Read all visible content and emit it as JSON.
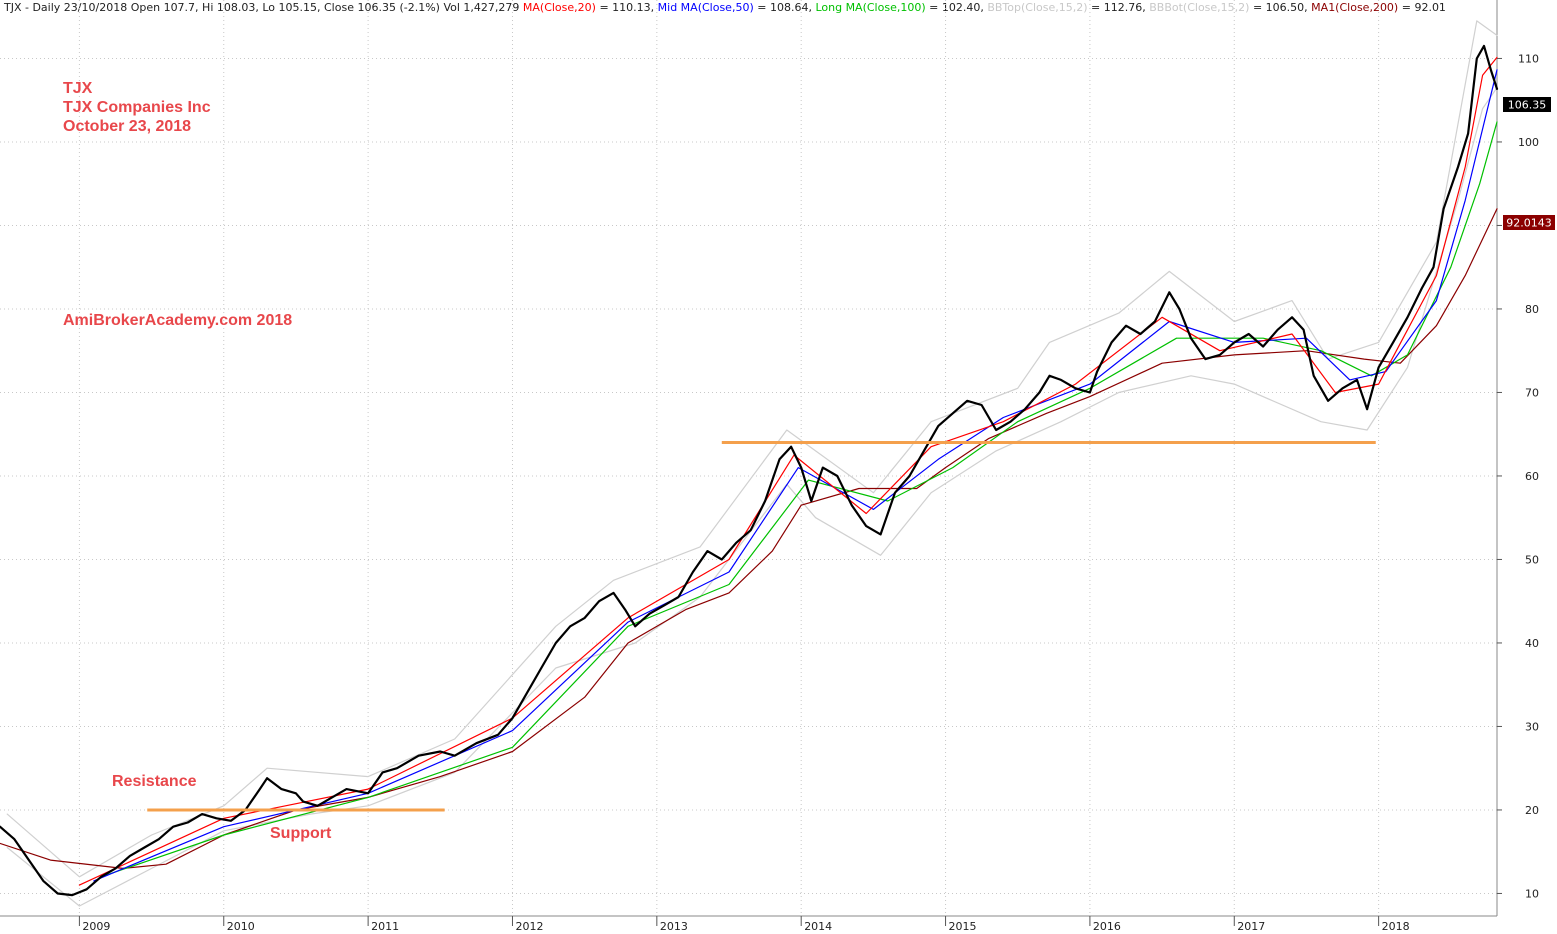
{
  "header": {
    "prefix": "TJX - Daily 23/10/2018 Open 107.7, Hi 108.03, Lo 105.15, Close 106.35 (-2.1%) Vol 1,427,279",
    "indicators": [
      {
        "label": "MA(Close,20)",
        "value": " = 110.13, ",
        "color": "#ff0000"
      },
      {
        "label": "Mid MA(Close,50)",
        "value": " = 108.64, ",
        "color": "#0000ff"
      },
      {
        "label": "Long MA(Close,100)",
        "value": " = 102.40, ",
        "color": "#00c000"
      },
      {
        "label": "BBTop(Close,15,2)",
        "value": " = 112.76, ",
        "color": "#c8c8c8"
      },
      {
        "label": "BBBot(Close,15,2)",
        "value": " = 106.50, ",
        "color": "#c8c8c8"
      },
      {
        "label": "MA1(Close,200)",
        "value": " = 92.01",
        "color": "#8b0000"
      }
    ]
  },
  "annotations": {
    "ticker": "TJX",
    "company": "TJX Companies Inc",
    "date": "October 23, 2018",
    "watermark": "AmiBrokerAcademy.com 2018",
    "resistance": "Resistance",
    "support": "Support"
  },
  "price_tags": {
    "close": "106.35",
    "ma200": "92.0143"
  },
  "colors": {
    "price": "#000000",
    "ma20": "#ff0000",
    "ma50": "#0000ff",
    "ma100": "#00c000",
    "bollinger": "#d0d0d0",
    "ma200": "#8b0000",
    "level_line": "#f4a04c",
    "annotation": "#e8474b",
    "grid": "#c8c8c8"
  },
  "chart_data": {
    "type": "line",
    "title": "TJX - Daily 23/10/2018",
    "x_range": [
      2008.45,
      2018.82
    ],
    "ylim": [
      7.3,
      117
    ],
    "y_axis_position": "right",
    "y_ticks": [
      10,
      20,
      30,
      40,
      50,
      60,
      70,
      80,
      90,
      100,
      110
    ],
    "x_ticks": [
      {
        "label": "2009",
        "x": 2009.0
      },
      {
        "label": "2010",
        "x": 2010.0
      },
      {
        "label": "2011",
        "x": 2011.0
      },
      {
        "label": "2012",
        "x": 2012.0
      },
      {
        "label": "2013",
        "x": 2013.0
      },
      {
        "label": "2014",
        "x": 2014.0
      },
      {
        "label": "2015",
        "x": 2015.0
      },
      {
        "label": "2016",
        "x": 2016.0
      },
      {
        "label": "2017",
        "x": 2017.0
      },
      {
        "label": "2018",
        "x": 2018.0
      }
    ],
    "grid": true,
    "series": [
      {
        "name": "Close",
        "color": "#000000",
        "points": [
          [
            2008.45,
            18.0
          ],
          [
            2008.55,
            16.5
          ],
          [
            2008.65,
            14.0
          ],
          [
            2008.75,
            11.5
          ],
          [
            2008.85,
            10.0
          ],
          [
            2008.95,
            9.8
          ],
          [
            2009.05,
            10.5
          ],
          [
            2009.15,
            12.0
          ],
          [
            2009.25,
            13.0
          ],
          [
            2009.35,
            14.5
          ],
          [
            2009.45,
            15.5
          ],
          [
            2009.55,
            16.5
          ],
          [
            2009.65,
            18.0
          ],
          [
            2009.75,
            18.5
          ],
          [
            2009.85,
            19.5
          ],
          [
            2009.95,
            19.0
          ],
          [
            2010.05,
            18.7
          ],
          [
            2010.15,
            20.0
          ],
          [
            2010.25,
            22.5
          ],
          [
            2010.3,
            23.8
          ],
          [
            2010.4,
            22.5
          ],
          [
            2010.5,
            22.0
          ],
          [
            2010.55,
            21.0
          ],
          [
            2010.65,
            20.5
          ],
          [
            2010.75,
            21.5
          ],
          [
            2010.85,
            22.5
          ],
          [
            2011.0,
            22.0
          ],
          [
            2011.1,
            24.5
          ],
          [
            2011.2,
            25.0
          ],
          [
            2011.35,
            26.5
          ],
          [
            2011.5,
            27.0
          ],
          [
            2011.6,
            26.5
          ],
          [
            2011.75,
            28.0
          ],
          [
            2011.9,
            29.0
          ],
          [
            2012.0,
            31.0
          ],
          [
            2012.1,
            34.0
          ],
          [
            2012.2,
            37.0
          ],
          [
            2012.3,
            40.0
          ],
          [
            2012.4,
            42.0
          ],
          [
            2012.5,
            43.0
          ],
          [
            2012.6,
            45.0
          ],
          [
            2012.7,
            46.0
          ],
          [
            2012.78,
            44.0
          ],
          [
            2012.85,
            42.0
          ],
          [
            2012.95,
            43.5
          ],
          [
            2013.05,
            44.5
          ],
          [
            2013.15,
            45.5
          ],
          [
            2013.25,
            48.5
          ],
          [
            2013.35,
            51.0
          ],
          [
            2013.45,
            50.0
          ],
          [
            2013.55,
            52.0
          ],
          [
            2013.65,
            53.5
          ],
          [
            2013.75,
            57.0
          ],
          [
            2013.85,
            62.0
          ],
          [
            2013.93,
            63.5
          ],
          [
            2014.0,
            61.0
          ],
          [
            2014.07,
            57.0
          ],
          [
            2014.15,
            61.0
          ],
          [
            2014.25,
            60.0
          ],
          [
            2014.35,
            56.5
          ],
          [
            2014.45,
            54.0
          ],
          [
            2014.55,
            53.0
          ],
          [
            2014.65,
            58.0
          ],
          [
            2014.75,
            60.0
          ],
          [
            2014.85,
            63.0
          ],
          [
            2014.95,
            66.0
          ],
          [
            2015.05,
            67.5
          ],
          [
            2015.15,
            69.0
          ],
          [
            2015.25,
            68.5
          ],
          [
            2015.35,
            65.5
          ],
          [
            2015.45,
            66.5
          ],
          [
            2015.55,
            68.0
          ],
          [
            2015.65,
            70.0
          ],
          [
            2015.72,
            72.0
          ],
          [
            2015.8,
            71.5
          ],
          [
            2015.9,
            70.5
          ],
          [
            2016.0,
            70.0
          ],
          [
            2016.05,
            72.5
          ],
          [
            2016.15,
            76.0
          ],
          [
            2016.25,
            78.0
          ],
          [
            2016.35,
            77.0
          ],
          [
            2016.45,
            78.5
          ],
          [
            2016.55,
            82.0
          ],
          [
            2016.62,
            80.0
          ],
          [
            2016.7,
            76.5
          ],
          [
            2016.8,
            74.0
          ],
          [
            2016.9,
            74.5
          ],
          [
            2017.0,
            76.0
          ],
          [
            2017.1,
            77.0
          ],
          [
            2017.2,
            75.5
          ],
          [
            2017.3,
            77.5
          ],
          [
            2017.4,
            79.0
          ],
          [
            2017.48,
            77.5
          ],
          [
            2017.55,
            72.0
          ],
          [
            2017.65,
            69.0
          ],
          [
            2017.75,
            70.5
          ],
          [
            2017.85,
            71.5
          ],
          [
            2017.92,
            68.0
          ],
          [
            2018.0,
            73.0
          ],
          [
            2018.1,
            76.0
          ],
          [
            2018.2,
            79.0
          ],
          [
            2018.3,
            82.5
          ],
          [
            2018.38,
            85.0
          ],
          [
            2018.45,
            92.0
          ],
          [
            2018.55,
            97.0
          ],
          [
            2018.62,
            101.0
          ],
          [
            2018.68,
            110.0
          ],
          [
            2018.73,
            111.5
          ],
          [
            2018.78,
            108.5
          ],
          [
            2018.82,
            106.35
          ]
        ]
      },
      {
        "name": "MA(Close,20)",
        "color": "#ff0000",
        "points": [
          [
            2009.0,
            11.0
          ],
          [
            2010.0,
            19.0
          ],
          [
            2011.0,
            22.5
          ],
          [
            2012.0,
            31.0
          ],
          [
            2012.8,
            43.0
          ],
          [
            2013.5,
            50.0
          ],
          [
            2013.95,
            62.5
          ],
          [
            2014.45,
            55.5
          ],
          [
            2014.9,
            63.5
          ],
          [
            2015.4,
            66.5
          ],
          [
            2015.9,
            71.0
          ],
          [
            2016.5,
            79.0
          ],
          [
            2016.9,
            75.0
          ],
          [
            2017.4,
            77.0
          ],
          [
            2017.7,
            70.0
          ],
          [
            2018.0,
            71.0
          ],
          [
            2018.4,
            84.0
          ],
          [
            2018.6,
            97.0
          ],
          [
            2018.72,
            108.0
          ],
          [
            2018.82,
            110.13
          ]
        ]
      },
      {
        "name": "Mid MA(Close,50)",
        "color": "#0000ff",
        "points": [
          [
            2009.1,
            11.5
          ],
          [
            2010.0,
            18.0
          ],
          [
            2011.0,
            22.0
          ],
          [
            2012.0,
            29.5
          ],
          [
            2012.8,
            42.5
          ],
          [
            2013.5,
            48.5
          ],
          [
            2013.98,
            61.0
          ],
          [
            2014.5,
            56.0
          ],
          [
            2014.95,
            62.0
          ],
          [
            2015.4,
            67.0
          ],
          [
            2016.0,
            71.0
          ],
          [
            2016.55,
            78.5
          ],
          [
            2017.0,
            76.0
          ],
          [
            2017.5,
            76.5
          ],
          [
            2017.8,
            71.5
          ],
          [
            2018.05,
            72.5
          ],
          [
            2018.4,
            81.0
          ],
          [
            2018.6,
            93.0
          ],
          [
            2018.82,
            108.64
          ]
        ]
      },
      {
        "name": "Long MA(Close,100)",
        "color": "#00c000",
        "points": [
          [
            2009.15,
            12.0
          ],
          [
            2010.0,
            17.0
          ],
          [
            2011.0,
            21.5
          ],
          [
            2012.0,
            27.5
          ],
          [
            2012.8,
            42.0
          ],
          [
            2013.5,
            47.0
          ],
          [
            2014.05,
            59.5
          ],
          [
            2014.6,
            57.0
          ],
          [
            2015.05,
            61.0
          ],
          [
            2015.5,
            66.5
          ],
          [
            2016.0,
            70.5
          ],
          [
            2016.6,
            76.5
          ],
          [
            2017.2,
            76.5
          ],
          [
            2017.6,
            75.0
          ],
          [
            2017.95,
            72.0
          ],
          [
            2018.2,
            74.5
          ],
          [
            2018.5,
            85.0
          ],
          [
            2018.7,
            95.0
          ],
          [
            2018.82,
            102.4
          ]
        ]
      },
      {
        "name": "MA1(Close,200)",
        "color": "#8b0000",
        "points": [
          [
            2008.45,
            16.0
          ],
          [
            2008.8,
            14.0
          ],
          [
            2009.3,
            13.0
          ],
          [
            2009.6,
            13.5
          ],
          [
            2010.0,
            17.0
          ],
          [
            2010.5,
            20.0
          ],
          [
            2011.0,
            21.5
          ],
          [
            2011.5,
            24.0
          ],
          [
            2012.0,
            27.0
          ],
          [
            2012.5,
            33.5
          ],
          [
            2012.8,
            40.0
          ],
          [
            2013.2,
            44.0
          ],
          [
            2013.5,
            46.0
          ],
          [
            2013.8,
            51.0
          ],
          [
            2014.0,
            56.5
          ],
          [
            2014.4,
            58.5
          ],
          [
            2014.8,
            58.5
          ],
          [
            2015.0,
            61.0
          ],
          [
            2015.3,
            64.5
          ],
          [
            2015.7,
            67.5
          ],
          [
            2016.0,
            69.5
          ],
          [
            2016.5,
            73.5
          ],
          [
            2017.0,
            74.5
          ],
          [
            2017.5,
            75.0
          ],
          [
            2017.9,
            74.0
          ],
          [
            2018.15,
            73.5
          ],
          [
            2018.4,
            78.0
          ],
          [
            2018.6,
            84.0
          ],
          [
            2018.82,
            92.01
          ]
        ]
      },
      {
        "name": "BBTop(Close,15,2)",
        "color": "#d0d0d0",
        "points": [
          [
            2008.5,
            19.5
          ],
          [
            2009.0,
            12.0
          ],
          [
            2009.5,
            17.0
          ],
          [
            2010.0,
            20.5
          ],
          [
            2010.3,
            25.0
          ],
          [
            2011.0,
            24.0
          ],
          [
            2011.6,
            28.5
          ],
          [
            2012.3,
            42.0
          ],
          [
            2012.7,
            47.5
          ],
          [
            2013.3,
            51.5
          ],
          [
            2013.9,
            65.5
          ],
          [
            2014.1,
            63.0
          ],
          [
            2014.5,
            58.0
          ],
          [
            2014.9,
            66.5
          ],
          [
            2015.5,
            70.5
          ],
          [
            2015.72,
            76.0
          ],
          [
            2016.2,
            79.5
          ],
          [
            2016.55,
            84.5
          ],
          [
            2017.0,
            78.5
          ],
          [
            2017.4,
            81.0
          ],
          [
            2017.65,
            74.0
          ],
          [
            2018.0,
            76.0
          ],
          [
            2018.4,
            88.0
          ],
          [
            2018.68,
            114.5
          ],
          [
            2018.82,
            112.76
          ]
        ]
      },
      {
        "name": "BBBot(Close,15,2)",
        "color": "#d0d0d0",
        "points": [
          [
            2008.5,
            15.5
          ],
          [
            2009.0,
            8.5
          ],
          [
            2009.5,
            13.0
          ],
          [
            2010.0,
            17.5
          ],
          [
            2010.6,
            19.5
          ],
          [
            2011.0,
            20.5
          ],
          [
            2011.6,
            24.5
          ],
          [
            2012.3,
            37.0
          ],
          [
            2012.85,
            40.0
          ],
          [
            2013.3,
            45.5
          ],
          [
            2013.9,
            59.0
          ],
          [
            2014.1,
            55.0
          ],
          [
            2014.55,
            50.5
          ],
          [
            2014.9,
            58.0
          ],
          [
            2015.35,
            63.0
          ],
          [
            2015.8,
            66.5
          ],
          [
            2016.2,
            70.0
          ],
          [
            2016.7,
            72.0
          ],
          [
            2017.0,
            71.0
          ],
          [
            2017.6,
            66.5
          ],
          [
            2017.92,
            65.5
          ],
          [
            2018.2,
            73.0
          ],
          [
            2018.55,
            93.0
          ],
          [
            2018.72,
            104.0
          ],
          [
            2018.82,
            106.5
          ]
        ]
      }
    ],
    "levels": [
      {
        "name": "resistance-support-2010",
        "y": 20.0,
        "x_start": 2009.47,
        "x_end": 2011.53
      },
      {
        "name": "support-2015-2017",
        "y": 64.0,
        "x_start": 2013.45,
        "x_end": 2017.98
      }
    ]
  }
}
